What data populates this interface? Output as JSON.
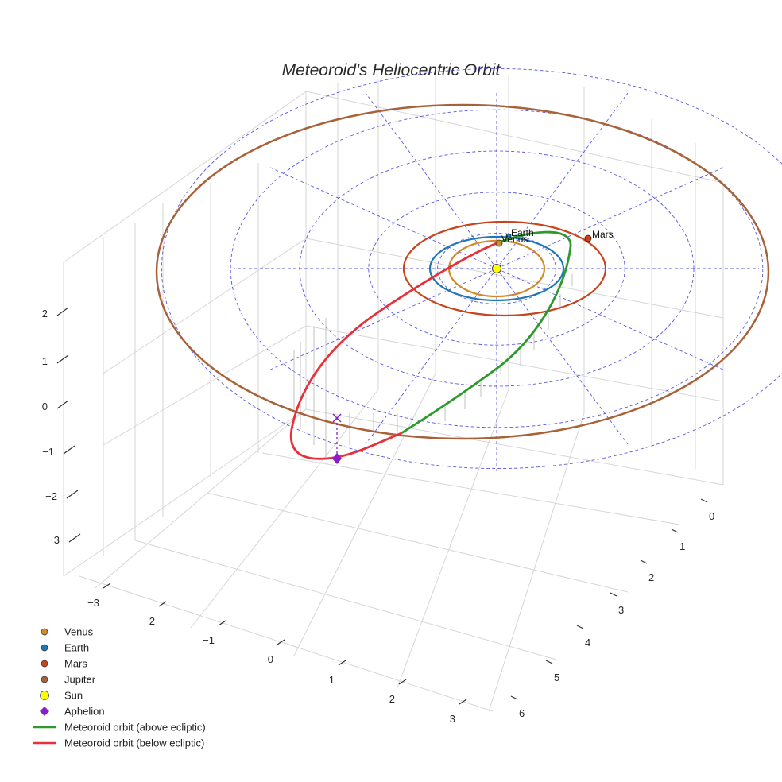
{
  "chart_data": {
    "type": "3d-orbit",
    "title": "Meteoroid's Heliocentric Orbit",
    "axes": {
      "x": {
        "ticks": [
          "−3",
          "−2",
          "−1",
          "0",
          "1",
          "2",
          "3"
        ],
        "range": [
          -3.5,
          3.5
        ]
      },
      "y": {
        "ticks": [
          "0",
          "1",
          "2",
          "3",
          "4",
          "5",
          "6"
        ],
        "range": [
          -0.5,
          6.5
        ]
      },
      "z": {
        "ticks": [
          "2",
          "1",
          "0",
          "−1",
          "−2",
          "−3"
        ],
        "range": [
          -3.8,
          2.8
        ]
      }
    },
    "bodies": [
      {
        "name": "Venus",
        "orbit_radius_au": 0.72,
        "color": "#d08a2a",
        "label": "Venus"
      },
      {
        "name": "Earth",
        "orbit_radius_au": 1.0,
        "color": "#1f77b4",
        "label": "Earth"
      },
      {
        "name": "Mars",
        "orbit_radius_au": 1.52,
        "color": "#c8441c",
        "label": "Mars"
      },
      {
        "name": "Jupiter",
        "orbit_radius_au": 5.2,
        "color": "#a8623a",
        "label": ""
      },
      {
        "name": "Sun",
        "orbit_radius_au": 0,
        "color": "#ffff00",
        "label": ""
      }
    ],
    "ecliptic_grid": {
      "circles": true,
      "spokes": true,
      "color": "#3b3be0",
      "style": "dashed"
    },
    "meteoroid": {
      "above_ecliptic_color": "#2e9a2e",
      "below_ecliptic_color": "#e8303a",
      "aphelion_color": "#8a1ec8"
    },
    "legend": {
      "placement": "bottom-left",
      "entries": [
        {
          "label": "Venus",
          "marker": "dot",
          "color": "#d08a2a"
        },
        {
          "label": "Earth",
          "marker": "dot",
          "color": "#1f77b4"
        },
        {
          "label": "Mars",
          "marker": "dot",
          "color": "#c8441c"
        },
        {
          "label": "Jupiter",
          "marker": "dot",
          "color": "#a8623a"
        },
        {
          "label": "Sun",
          "marker": "big-dot",
          "color": "#ffff00"
        },
        {
          "label": "Aphelion",
          "marker": "diamond",
          "color": "#8a1ec8"
        },
        {
          "label": "Meteoroid orbit (above ecliptic)",
          "marker": "line",
          "color": "#2e9a2e"
        },
        {
          "label": "Meteoroid orbit (below ecliptic)",
          "marker": "line",
          "color": "#e8303a"
        }
      ]
    }
  }
}
